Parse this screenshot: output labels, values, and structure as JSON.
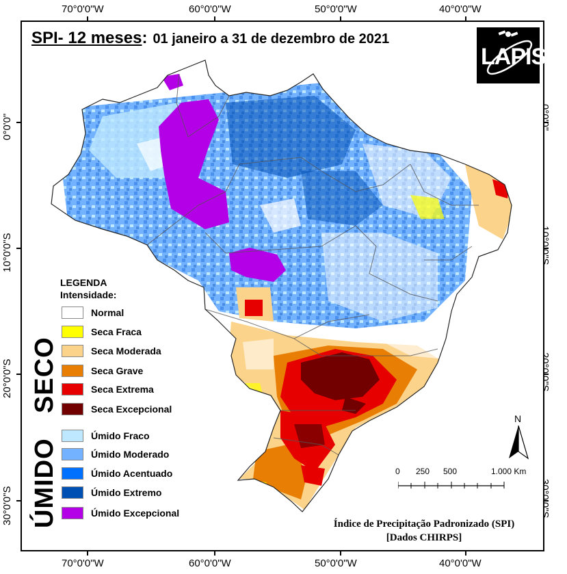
{
  "title": {
    "main": "SPI- 12 meses",
    "separator": ":",
    "period": "01 janeiro a 31 de dezembro de 2021"
  },
  "logo": {
    "text": "LAPIS"
  },
  "coords": {
    "lon": [
      "70°0'0\"W",
      "60°0'0\"W",
      "50°0'0\"W",
      "40°0'0\"W"
    ],
    "lat": [
      "0°0'0\"",
      "10°0'0\"S",
      "20°0'0\"S",
      "30°0'0\"S"
    ]
  },
  "legend": {
    "heading": "LEGENDA",
    "subheading": "Intensidade:",
    "group_dry": "SECO",
    "group_wet": "ÚMIDO",
    "items": [
      {
        "label": "Normal",
        "color": "#ffffff"
      },
      {
        "label": "Seca Fraca",
        "color": "#ffff00"
      },
      {
        "label": "Seca Moderada",
        "color": "#fcd38a"
      },
      {
        "label": "Seca Grave",
        "color": "#e87e04"
      },
      {
        "label": "Seca Extrema",
        "color": "#e60000"
      },
      {
        "label": "Seca Excepcional",
        "color": "#730000"
      },
      {
        "label": "Úmido Fraco",
        "color": "#bee8ff"
      },
      {
        "label": "Úmido Moderado",
        "color": "#73b2ff"
      },
      {
        "label": "Úmido Acentuado",
        "color": "#0070ff"
      },
      {
        "label": "Úmido Extremo",
        "color": "#0050b4"
      },
      {
        "label": "Úmido Excepcional",
        "color": "#b400e6"
      }
    ]
  },
  "north_label": "N",
  "scale": {
    "ticks": [
      "0",
      "250",
      "500",
      "1.000 Km"
    ]
  },
  "credit": {
    "line1": "Índice de Precipitação Padronizado (SPI)",
    "line2": "[Dados CHIRPS]"
  }
}
